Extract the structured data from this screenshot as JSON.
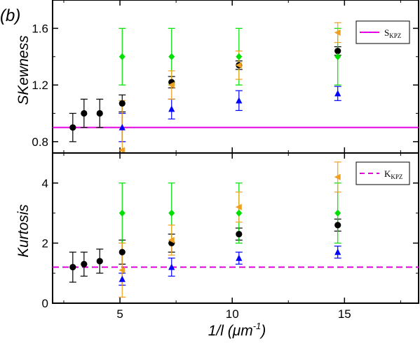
{
  "panel_label": "(b)",
  "x_axis": {
    "label_main": "1/l",
    "label_unit_open": " (",
    "label_unit_mu": "μm",
    "label_unit_exp": "-1",
    "label_unit_close": ")",
    "ticks": [
      "5",
      "10",
      "15"
    ]
  },
  "colors": {
    "black": "#000000",
    "blue": "#0000ff",
    "green": "#00e000",
    "orange": "#f0a020",
    "magenta": "#e000e0"
  },
  "chart_data": [
    {
      "type": "scatter",
      "panel": "top",
      "ylabel": "SKewness",
      "xlim": [
        2,
        18.3
      ],
      "ylim": [
        0.72,
        1.8
      ],
      "yticks": [
        "0.8",
        "1.2",
        "1.6"
      ],
      "legend": {
        "text": "S",
        "sub": "KPZ",
        "placement": "top-right",
        "line": "solid"
      },
      "reference_line": {
        "y": 0.9
      },
      "series": [
        {
          "color": "black",
          "marker": "circle",
          "points": [
            {
              "x": 2.9,
              "y": 0.9,
              "err": 0.1
            },
            {
              "x": 3.4,
              "y": 1.0,
              "err": 0.1
            },
            {
              "x": 4.1,
              "y": 1.0,
              "err": 0.1
            },
            {
              "x": 5.1,
              "y": 1.07,
              "err": 0.06
            },
            {
              "x": 7.3,
              "y": 1.22,
              "err": 0.04
            },
            {
              "x": 10.3,
              "y": 1.34,
              "err": 0.03
            },
            {
              "x": 14.7,
              "y": 1.44,
              "err": 0.03
            }
          ]
        },
        {
          "color": "blue",
          "marker": "triangle",
          "points": [
            {
              "x": 5.1,
              "y": 0.9,
              "err": 0.1
            },
            {
              "x": 7.3,
              "y": 1.03,
              "err": 0.07
            },
            {
              "x": 10.3,
              "y": 1.09,
              "err": 0.07
            },
            {
              "x": 14.7,
              "y": 1.14,
              "err": 0.05
            }
          ]
        },
        {
          "color": "green",
          "marker": "diamond",
          "points": [
            {
              "x": 5.1,
              "y": 1.4,
              "err": 0.2
            },
            {
              "x": 7.3,
              "y": 1.4,
              "err": 0.2
            },
            {
              "x": 10.3,
              "y": 1.4,
              "err": 0.2
            },
            {
              "x": 14.7,
              "y": 1.4,
              "err": 0.2
            }
          ]
        },
        {
          "color": "orange",
          "marker": "triangle-left",
          "points": [
            {
              "x": 5.1,
              "y": 0.74,
              "err": 0.35
            },
            {
              "x": 7.3,
              "y": 1.2,
              "err": 0.1
            },
            {
              "x": 10.3,
              "y": 1.34,
              "err": 0.1
            },
            {
              "x": 14.7,
              "y": 1.57,
              "err": 0.07
            }
          ]
        }
      ]
    },
    {
      "type": "scatter",
      "panel": "bottom",
      "ylabel": "Kurtosis",
      "xlim": [
        2,
        18.3
      ],
      "ylim": [
        0,
        5
      ],
      "yticks": [
        "0",
        "2",
        "4"
      ],
      "legend": {
        "text": "K",
        "sub": "KPZ",
        "placement": "top-right",
        "line": "dashed"
      },
      "reference_line": {
        "y": 1.2
      },
      "series": [
        {
          "color": "black",
          "marker": "circle",
          "points": [
            {
              "x": 2.9,
              "y": 1.2,
              "err": 0.5
            },
            {
              "x": 3.4,
              "y": 1.3,
              "err": 0.4
            },
            {
              "x": 4.1,
              "y": 1.4,
              "err": 0.4
            },
            {
              "x": 5.1,
              "y": 1.7,
              "err": 0.4
            },
            {
              "x": 7.3,
              "y": 2.0,
              "err": 0.3
            },
            {
              "x": 10.3,
              "y": 2.3,
              "err": 0.2
            },
            {
              "x": 14.7,
              "y": 2.6,
              "err": 0.2
            }
          ]
        },
        {
          "color": "blue",
          "marker": "triangle",
          "points": [
            {
              "x": 5.1,
              "y": 0.8,
              "err": 0.2
            },
            {
              "x": 7.3,
              "y": 1.2,
              "err": 0.3
            },
            {
              "x": 10.3,
              "y": 1.5,
              "err": 0.2
            },
            {
              "x": 14.7,
              "y": 1.7,
              "err": 0.2
            }
          ]
        },
        {
          "color": "green",
          "marker": "diamond",
          "points": [
            {
              "x": 5.1,
              "y": 3.0,
              "err": 1.0
            },
            {
              "x": 7.3,
              "y": 3.0,
              "err": 1.0
            },
            {
              "x": 10.3,
              "y": 3.0,
              "err": 1.0
            },
            {
              "x": 14.7,
              "y": 3.0,
              "err": 1.0
            }
          ]
        },
        {
          "color": "orange",
          "marker": "triangle-left",
          "points": [
            {
              "x": 5.1,
              "y": 1.1,
              "err": 0.9
            },
            {
              "x": 7.3,
              "y": 2.1,
              "err": 0.5
            },
            {
              "x": 10.3,
              "y": 3.2,
              "err": 0.5
            },
            {
              "x": 14.7,
              "y": 4.2,
              "err": 0.5
            }
          ]
        }
      ]
    }
  ]
}
